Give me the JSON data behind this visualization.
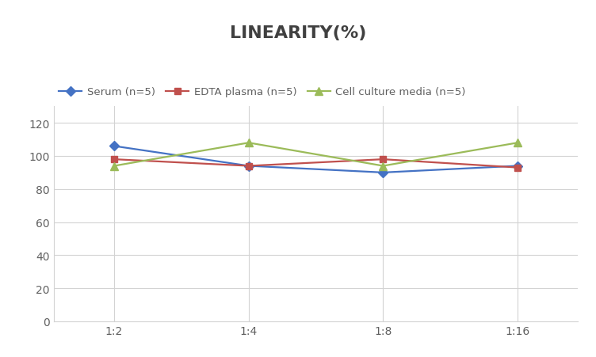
{
  "title": "LINEARITY(%)",
  "x_labels": [
    "1:2",
    "1:4",
    "1:8",
    "1:16"
  ],
  "x_positions": [
    0,
    1,
    2,
    3
  ],
  "series": [
    {
      "label": "Serum (n=5)",
      "values": [
        106,
        94,
        90,
        94
      ],
      "color": "#4472C4",
      "marker": "D",
      "markersize": 6,
      "linewidth": 1.6
    },
    {
      "label": "EDTA plasma (n=5)",
      "values": [
        98,
        94,
        98,
        93
      ],
      "color": "#C0504D",
      "marker": "s",
      "markersize": 6,
      "linewidth": 1.6
    },
    {
      "label": "Cell culture media (n=5)",
      "values": [
        94,
        108,
        94,
        108
      ],
      "color": "#9BBB59",
      "marker": "^",
      "markersize": 7,
      "linewidth": 1.6
    }
  ],
  "ylim": [
    0,
    130
  ],
  "yticks": [
    0,
    20,
    40,
    60,
    80,
    100,
    120
  ],
  "background_color": "#ffffff",
  "grid_color": "#d3d3d3",
  "title_fontsize": 16,
  "title_color": "#404040",
  "legend_fontsize": 9.5,
  "tick_fontsize": 10,
  "tick_color": "#606060"
}
